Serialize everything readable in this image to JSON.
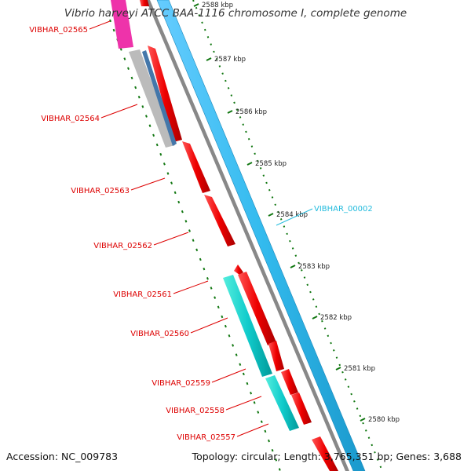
{
  "title": "Vibrio harveyi ATCC BAA-1116 chromosome I, complete genome",
  "accession": "Accession: NC_009783",
  "topology": "Topology: circular; Length: 3,765,351 bp; Genes: 3,688",
  "colors": {
    "forward_cds": "#ff0000",
    "reverse_cds": "#00c8c8",
    "contig_backbone": "#33bbee",
    "label_forward": "#dd0000",
    "label_reverse": "#22bbdd",
    "tick": "#117711"
  },
  "scale_ticks": [
    {
      "label": "2588 kbp"
    },
    {
      "label": "2587 kbp"
    },
    {
      "label": "2586 kbp"
    },
    {
      "label": "2585 kbp"
    },
    {
      "label": "2584 kbp"
    },
    {
      "label": "2583 kbp"
    },
    {
      "label": "2582 kbp"
    },
    {
      "label": "2581 kbp"
    },
    {
      "label": "2580 kbp"
    }
  ],
  "gene_labels": [
    {
      "name": "VIBHAR_02565",
      "strand": "forward"
    },
    {
      "name": "VIBHAR_02564",
      "strand": "forward"
    },
    {
      "name": "VIBHAR_02563",
      "strand": "forward"
    },
    {
      "name": "VIBHAR_02562",
      "strand": "forward"
    },
    {
      "name": "VIBHAR_02561",
      "strand": "forward"
    },
    {
      "name": "VIBHAR_02560",
      "strand": "forward"
    },
    {
      "name": "VIBHAR_02559",
      "strand": "forward"
    },
    {
      "name": "VIBHAR_02558",
      "strand": "forward"
    },
    {
      "name": "VIBHAR_02557",
      "strand": "forward"
    },
    {
      "name": "VIBHAR_00002",
      "strand": "reverse"
    }
  ]
}
